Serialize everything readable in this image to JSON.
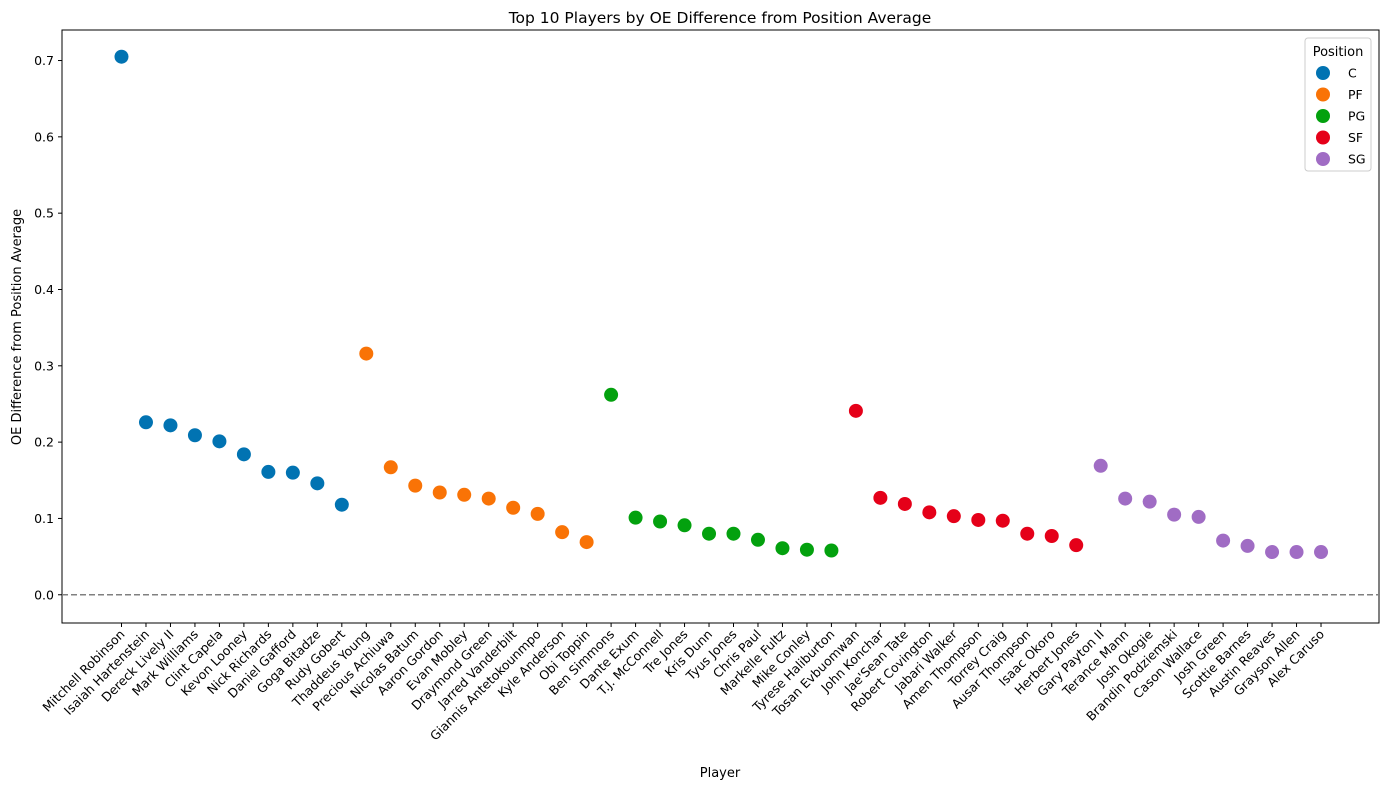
{
  "chart_data": {
    "type": "scatter",
    "title": "Top 10 Players by OE Difference from Position Average",
    "xlabel": "Player",
    "ylabel": "OE Difference from Position Average",
    "ylim": [
      -0.037,
      0.74
    ],
    "yticks": [
      0.0,
      0.1,
      0.2,
      0.3,
      0.4,
      0.5,
      0.6,
      0.7
    ],
    "ytick_labels": [
      "0.0",
      "0.1",
      "0.2",
      "0.3",
      "0.4",
      "0.5",
      "0.6",
      "0.7"
    ],
    "reference_line": {
      "y": 0.0,
      "style": "dashed",
      "color": "#808080"
    },
    "legend": {
      "title": "Position",
      "placement": "top-right"
    },
    "series": [
      {
        "name": "C",
        "color": "#0173B2",
        "players": [
          "Mitchell Robinson",
          "Isaiah Hartenstein",
          "Dereck Lively II",
          "Mark Williams",
          "Clint Capela",
          "Kevon Looney",
          "Nick Richards",
          "Daniel Gafford",
          "Goga Bitadze",
          "Rudy Gobert"
        ],
        "values": [
          0.705,
          0.226,
          0.222,
          0.209,
          0.201,
          0.184,
          0.161,
          0.16,
          0.146,
          0.118
        ]
      },
      {
        "name": "PF",
        "color": "#F97306",
        "players": [
          "Thaddeus Young",
          "Precious Achiuwa",
          "Nicolas Batum",
          "Aaron Gordon",
          "Evan Mobley",
          "Draymond Green",
          "Jarred Vanderbilt",
          "Giannis Antetokounmpo",
          "Kyle Anderson",
          "Obi Toppin"
        ],
        "values": [
          0.316,
          0.167,
          0.143,
          0.134,
          0.131,
          0.126,
          0.114,
          0.106,
          0.082,
          0.069
        ]
      },
      {
        "name": "PG",
        "color": "#03A10E",
        "players": [
          "Ben Simmons",
          "Dante Exum",
          "T.J. McConnell",
          "Tre Jones",
          "Kris Dunn",
          "Tyus Jones",
          "Chris Paul",
          "Markelle Fultz",
          "Mike Conley",
          "Tyrese Haliburton"
        ],
        "values": [
          0.262,
          0.101,
          0.096,
          0.091,
          0.08,
          0.08,
          0.072,
          0.061,
          0.059,
          0.058
        ]
      },
      {
        "name": "SF",
        "color": "#E50019",
        "players": [
          "Tosan Evbuomwan",
          "John Konchar",
          "Jae'Sean Tate",
          "Robert Covington",
          "Jabari Walker",
          "Amen Thompson",
          "Torrey Craig",
          "Ausar Thompson",
          "Isaac Okoro",
          "Herbert Jones"
        ],
        "values": [
          0.241,
          0.127,
          0.119,
          0.108,
          0.103,
          0.098,
          0.097,
          0.08,
          0.077,
          0.065
        ]
      },
      {
        "name": "SG",
        "color": "#A06CC4",
        "players": [
          "Gary Payton II",
          "Terance Mann",
          "Josh Okogie",
          "Brandin Podziemski",
          "Cason Wallace",
          "Josh Green",
          "Scottie Barnes",
          "Austin Reaves",
          "Grayson Allen",
          "Alex Caruso"
        ],
        "values": [
          0.169,
          0.126,
          0.122,
          0.105,
          0.102,
          0.071,
          0.064,
          0.056,
          0.056,
          0.056
        ]
      }
    ]
  }
}
